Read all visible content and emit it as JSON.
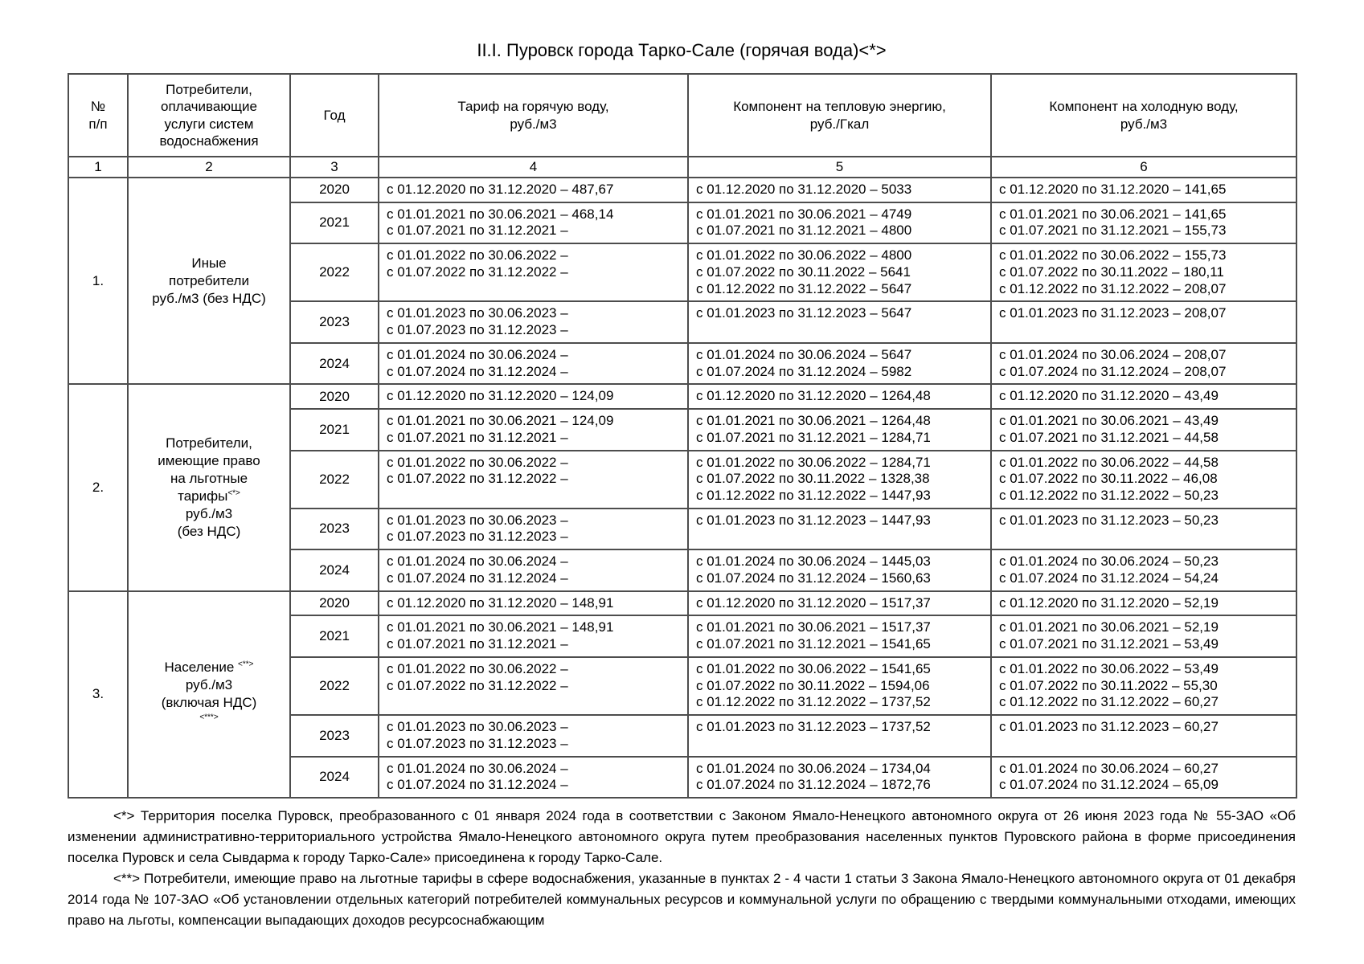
{
  "page": {
    "title": "II.I. Пуровск города Тарко-Сале (горячая вода)<*>"
  },
  "table": {
    "headers": {
      "col1": "№\nп/п",
      "col2": "Потребители,\nоплачивающие\nуслуги систем\nводоснабжения",
      "col3": "Год",
      "col4": "Тариф на горячую воду,\nруб./м3",
      "col5": "Компонент на тепловую энергию,\nруб./Гкал",
      "col6": "Компонент на холодную воду,\nруб./м3"
    },
    "column_numbers": [
      "1",
      "2",
      "3",
      "4",
      "5",
      "6"
    ],
    "groups": [
      {
        "number": "1.",
        "label_lines": [
          {
            "text": "Иные"
          },
          {
            "text": "потребители"
          },
          {
            "text": "руб./м3 (без НДС)"
          }
        ],
        "rows": [
          {
            "year": "2020",
            "tariff": [
              "с 01.12.2020 по 31.12.2020 – 487,67"
            ],
            "heat": [
              "с 01.12.2020 по 31.12.2020 – 5033"
            ],
            "cold": [
              "с 01.12.2020 по 31.12.2020 – 141,65"
            ]
          },
          {
            "year": "2021",
            "tariff": [
              "с 01.01.2021 по 30.06.2021 – 468,14",
              "с 01.07.2021 по 31.12.2021 –"
            ],
            "heat": [
              "с 01.01.2021 по 30.06.2021 – 4749",
              "с 01.07.2021 по 31.12.2021 – 4800"
            ],
            "cold": [
              "с 01.01.2021 по 30.06.2021 – 141,65",
              "с 01.07.2021 по 31.12.2021 – 155,73"
            ]
          },
          {
            "year": "2022",
            "tariff": [
              "с 01.01.2022 по 30.06.2022 –",
              "с 01.07.2022 по 31.12.2022 –"
            ],
            "heat": [
              "с 01.01.2022 по 30.06.2022 – 4800",
              "с 01.07.2022 по 30.11.2022 – 5641",
              "с 01.12.2022 по 31.12.2022 – 5647"
            ],
            "cold": [
              "с 01.01.2022 по 30.06.2022 – 155,73",
              "с 01.07.2022 по 30.11.2022 – 180,11",
              "с 01.12.2022 по 31.12.2022 – 208,07"
            ]
          },
          {
            "year": "2023",
            "tariff": [
              "с 01.01.2023 по 30.06.2023 –",
              "с 01.07.2023 по 31.12.2023 –"
            ],
            "heat": [
              "с 01.01.2023 по 31.12.2023 – 5647"
            ],
            "cold": [
              "с 01.01.2023 по 31.12.2023 – 208,07"
            ]
          },
          {
            "year": "2024",
            "tariff": [
              "с 01.01.2024 по 30.06.2024 –",
              "с 01.07.2024 по 31.12.2024 –"
            ],
            "heat": [
              "с 01.01.2024 по 30.06.2024 – 5647",
              "с 01.07.2024 по 31.12.2024 – 5982"
            ],
            "cold": [
              "с 01.01.2024 по 30.06.2024 – 208,07",
              "с 01.07.2024 по 31.12.2024 – 208,07"
            ]
          }
        ]
      },
      {
        "number": "2.",
        "label_lines": [
          {
            "text": "Потребители,"
          },
          {
            "text": "имеющие право"
          },
          {
            "text": "на льготные"
          },
          {
            "text": "тарифы",
            "sup": "<*>"
          },
          {
            "text": "руб./м3"
          },
          {
            "text": "(без НДС)"
          }
        ],
        "rows": [
          {
            "year": "2020",
            "tariff": [
              "с 01.12.2020 по 31.12.2020 – 124,09"
            ],
            "heat": [
              "с 01.12.2020 по 31.12.2020 – 1264,48"
            ],
            "cold": [
              "с 01.12.2020 по 31.12.2020 – 43,49"
            ]
          },
          {
            "year": "2021",
            "tariff": [
              "с 01.01.2021 по 30.06.2021 – 124,09",
              "с 01.07.2021 по 31.12.2021 –"
            ],
            "heat": [
              "с 01.01.2021 по 30.06.2021 – 1264,48",
              "с 01.07.2021 по 31.12.2021 – 1284,71"
            ],
            "cold": [
              "с 01.01.2021 по 30.06.2021 – 43,49",
              "с 01.07.2021 по 31.12.2021 – 44,58"
            ]
          },
          {
            "year": "2022",
            "tariff": [
              "с 01.01.2022 по 30.06.2022 –",
              "с 01.07.2022 по 31.12.2022 –"
            ],
            "heat": [
              "с 01.01.2022 по 30.06.2022 – 1284,71",
              "с 01.07.2022 по 30.11.2022 – 1328,38",
              "с 01.12.2022 по 31.12.2022 – 1447,93"
            ],
            "cold": [
              "с 01.01.2022 по 30.06.2022 – 44,58",
              "с 01.07.2022 по 30.11.2022 – 46,08",
              "с 01.12.2022 по 31.12.2022 – 50,23"
            ]
          },
          {
            "year": "2023",
            "tariff": [
              "с 01.01.2023 по 30.06.2023 –",
              "с 01.07.2023 по 31.12.2023 –"
            ],
            "heat": [
              "с 01.01.2023 по 31.12.2023 – 1447,93"
            ],
            "cold": [
              "с 01.01.2023 по 31.12.2023 – 50,23"
            ]
          },
          {
            "year": "2024",
            "tariff": [
              "с 01.01.2024 по 30.06.2024 –",
              "с 01.07.2024 по 31.12.2024 –"
            ],
            "heat": [
              "с 01.01.2024 по 30.06.2024 – 1445,03",
              "с 01.07.2024 по 31.12.2024 – 1560,63"
            ],
            "cold": [
              "с 01.01.2024 по 30.06.2024 – 50,23",
              "с 01.07.2024 по 31.12.2024 – 54,24"
            ]
          }
        ]
      },
      {
        "number": "3.",
        "label_lines": [
          {
            "text": "Население ",
            "sup": "<**>"
          },
          {
            "text": "руб./м3"
          },
          {
            "text": "(включая НДС)"
          },
          {
            "text": "",
            "sup": "<***>"
          }
        ],
        "rows": [
          {
            "year": "2020",
            "tariff": [
              "с 01.12.2020 по 31.12.2020 – 148,91"
            ],
            "heat": [
              "с 01.12.2020 по 31.12.2020 – 1517,37"
            ],
            "cold": [
              "с 01.12.2020 по 31.12.2020 – 52,19"
            ]
          },
          {
            "year": "2021",
            "tariff": [
              "с 01.01.2021 по 30.06.2021 – 148,91",
              "с 01.07.2021 по 31.12.2021 –"
            ],
            "heat": [
              "с 01.01.2021 по 30.06.2021 – 1517,37",
              "с 01.07.2021 по 31.12.2021 – 1541,65"
            ],
            "cold": [
              "с 01.01.2021 по 30.06.2021 – 52,19",
              "с 01.07.2021 по 31.12.2021 – 53,49"
            ]
          },
          {
            "year": "2022",
            "tariff": [
              "с 01.01.2022 по 30.06.2022 –",
              "с 01.07.2022 по 31.12.2022 –"
            ],
            "heat": [
              "с 01.01.2022 по 30.06.2022 – 1541,65",
              "с 01.07.2022 по 30.11.2022 – 1594,06",
              "с 01.12.2022 по 31.12.2022 – 1737,52"
            ],
            "cold": [
              "с 01.01.2022 по 30.06.2022 – 53,49",
              "с 01.07.2022 по 30.11.2022 – 55,30",
              "с 01.12.2022 по 31.12.2022 – 60,27"
            ]
          },
          {
            "year": "2023",
            "tariff": [
              "с 01.01.2023 по 30.06.2023 –",
              "с 01.07.2023 по 31.12.2023 –"
            ],
            "heat": [
              "с 01.01.2023 по 31.12.2023 – 1737,52"
            ],
            "cold": [
              "с 01.01.2023 по 31.12.2023 – 60,27"
            ]
          },
          {
            "year": "2024",
            "tariff": [
              "с 01.01.2024 по 30.06.2024 –",
              "с 01.07.2024 по 31.12.2024 –"
            ],
            "heat": [
              "с 01.01.2024 по 30.06.2024 – 1734,04",
              "с 01.07.2024 по 31.12.2024 – 1872,76"
            ],
            "cold": [
              "с 01.01.2024 по 30.06.2024 – 60,27",
              "с 01.07.2024 по 31.12.2024 – 65,09"
            ]
          }
        ]
      }
    ]
  },
  "footnotes": [
    "<*> Территория поселка Пуровск, преобразованного с 01 января 2024 года в соответствии с Законом Ямало-Ненецкого автономного округа от 26 июня 2023 года № 55-ЗАО «Об изменении административно-территориального устройства Ямало-Ненецкого автономного округа путем преобразования населенных пунктов Пуровского района в форме присоединения поселка Пуровск и села Сывдарма к городу Тарко-Сале» присоединена к городу Тарко-Сале.",
    "<**> Потребители, имеющие право на льготные тарифы в сфере водоснабжения, указанные в пунктах 2 - 4 части 1 статьи 3 Закона Ямало-Ненецкого автономного округа от 01 декабря 2014 года № 107-ЗАО «Об установлении отдельных категорий потребителей коммунальных ресурсов и коммунальной услуги по обращению с твердыми коммунальными отходами, имеющих право на льготы, компенсации выпадающих доходов ресурсоснабжающим"
  ]
}
